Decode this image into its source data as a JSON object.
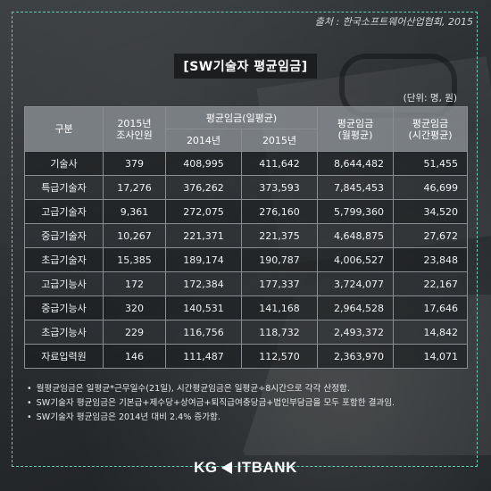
{
  "source": "출처 : 한국소프트웨어산업협회, 2015",
  "title": "[SW기술자 평균임금]",
  "unit": "(단위: 명, 원)",
  "header": {
    "category": "구분",
    "survey_count": "2015년\n조사인원",
    "avg_wage": "평균임금(일평균)",
    "year_2014": "2014년",
    "year_2015": "2015년",
    "monthly": "평균임금\n(월평균)",
    "hourly": "평균임금\n(시간평균)"
  },
  "rows": [
    {
      "cat": "기술사",
      "count": "379",
      "y2014": "408,995",
      "y2015": "411,642",
      "monthly": "8,644,482",
      "hourly": "51,455"
    },
    {
      "cat": "특급기술자",
      "count": "17,276",
      "y2014": "376,262",
      "y2015": "373,593",
      "monthly": "7,845,453",
      "hourly": "46,699"
    },
    {
      "cat": "고급기술자",
      "count": "9,361",
      "y2014": "272,075",
      "y2015": "276,160",
      "monthly": "5,799,360",
      "hourly": "34,520"
    },
    {
      "cat": "중급기술자",
      "count": "10,267",
      "y2014": "221,371",
      "y2015": "221,375",
      "monthly": "4,648,875",
      "hourly": "27,672"
    },
    {
      "cat": "초급기술자",
      "count": "15,385",
      "y2014": "189,174",
      "y2015": "190,787",
      "monthly": "4,006,527",
      "hourly": "23,848"
    },
    {
      "cat": "고급기능사",
      "count": "172",
      "y2014": "172,384",
      "y2015": "177,337",
      "monthly": "3,724,077",
      "hourly": "22,167"
    },
    {
      "cat": "중급기능사",
      "count": "320",
      "y2014": "140,531",
      "y2015": "141,168",
      "monthly": "2,964,528",
      "hourly": "17,646"
    },
    {
      "cat": "초급기능사",
      "count": "229",
      "y2014": "116,756",
      "y2015": "118,732",
      "monthly": "2,493,372",
      "hourly": "14,842"
    },
    {
      "cat": "자료입력원",
      "count": "146",
      "y2014": "111,487",
      "y2015": "112,570",
      "monthly": "2,363,970",
      "hourly": "14,071"
    }
  ],
  "notes": [
    "월평균임금은 일평균*근무일수(21일), 시간평균임금은 일평균÷8시간으로 각각 산정함.",
    "SW기술자 평균임금은 기본급+제수당+상여금+퇴직급여충당금+법인부담금을 모두 포함한 결과임.",
    "SW기술자 평균임금은 2014년 대비 2.4% 증가함."
  ],
  "logo": {
    "brand": "KG",
    "name": "ITBANK"
  },
  "colors": {
    "frame_dashed": "#5fd0b8",
    "header_bg": "#8c9196"
  }
}
